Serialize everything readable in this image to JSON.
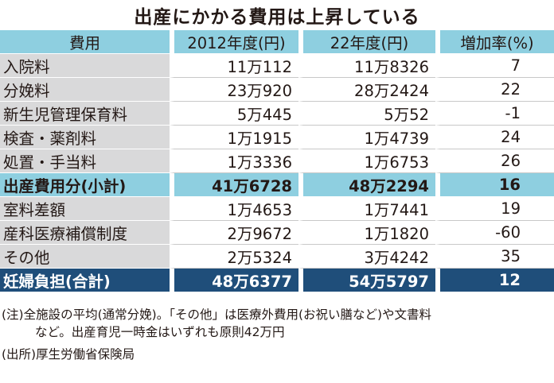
{
  "title": "出産にかかる費用は上昇している",
  "table": {
    "headers": [
      "費用",
      "2012年度(円)",
      "22年度(円)",
      "増加率(%)"
    ],
    "rows": [
      {
        "item": "入院料",
        "y2012": "11万112",
        "y2022": "11万8326",
        "rate": "7",
        "type": "normal"
      },
      {
        "item": "分娩料",
        "y2012": "23万920",
        "y2022": "28万2424",
        "rate": "22",
        "type": "normal"
      },
      {
        "item": "新生児管理保育料",
        "y2012": "5万445",
        "y2022": "5万52",
        "rate": "-1",
        "type": "normal"
      },
      {
        "item": "検査・薬剤料",
        "y2012": "1万1915",
        "y2022": "1万4739",
        "rate": "24",
        "type": "normal"
      },
      {
        "item": "処置・手当料",
        "y2012": "1万3336",
        "y2022": "1万6753",
        "rate": "26",
        "type": "normal"
      },
      {
        "item": "出産費用分(小計)",
        "y2012": "41万6728",
        "y2022": "48万2294",
        "rate": "16",
        "type": "subtotal"
      },
      {
        "item": "室料差額",
        "y2012": "1万4653",
        "y2022": "1万7441",
        "rate": "19",
        "type": "normal"
      },
      {
        "item": "産科医療補償制度",
        "y2012": "2万9672",
        "y2022": "1万1820",
        "rate": "-60",
        "type": "normal"
      },
      {
        "item": "その他",
        "y2012": "2万5324",
        "y2022": "3万4242",
        "rate": "35",
        "type": "normal"
      },
      {
        "item": "妊婦負担(合計)",
        "y2012": "48万6377",
        "y2022": "54万5797",
        "rate": "12",
        "type": "total"
      }
    ]
  },
  "notes": {
    "line1": "(注)全施設の平均(通常分娩)。「その他」は医療外費用(お祝い膳など)や文書料",
    "line2": "など。出産育児一時金はいずれも原則42万円",
    "source": "(出所)厚生労働省保険局"
  },
  "colors": {
    "header_bg": "#8ecfe0",
    "label_bg": "#d9d9da",
    "subtotal_bg": "#8ecfe0",
    "total_bg": "#1f4e7a"
  }
}
